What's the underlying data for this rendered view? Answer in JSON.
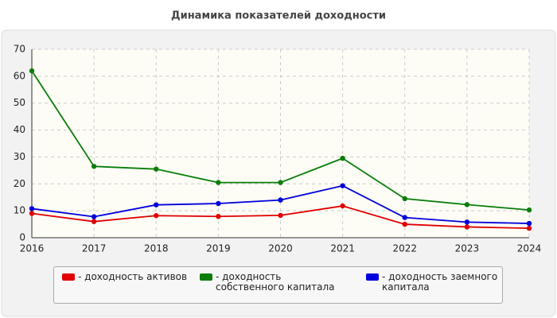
{
  "chart_data": {
    "type": "line",
    "title": "Динамика показателей доходности",
    "categories": [
      "2016",
      "2017",
      "2018",
      "2019",
      "2020",
      "2021",
      "2022",
      "2023",
      "2024"
    ],
    "series": [
      {
        "name": "- доходность активов",
        "color": "#e00000",
        "values": [
          9,
          6,
          8.2,
          7.9,
          8.3,
          11.8,
          5,
          4,
          3.5
        ]
      },
      {
        "name": "- доходность собственного капитала",
        "color": "#0a7d0a",
        "values": [
          62,
          26.5,
          25.5,
          20.5,
          20.5,
          29.5,
          14.5,
          12.3,
          10.3
        ]
      },
      {
        "name": "- доходность заемного капитала",
        "color": "#0000dd",
        "values": [
          10.8,
          7.8,
          12.2,
          12.7,
          14,
          19.3,
          7.5,
          5.8,
          5.3
        ]
      }
    ],
    "ylim": [
      0,
      70
    ],
    "yticks": [
      0,
      10,
      20,
      30,
      40,
      50,
      60,
      70
    ],
    "grid": true
  }
}
